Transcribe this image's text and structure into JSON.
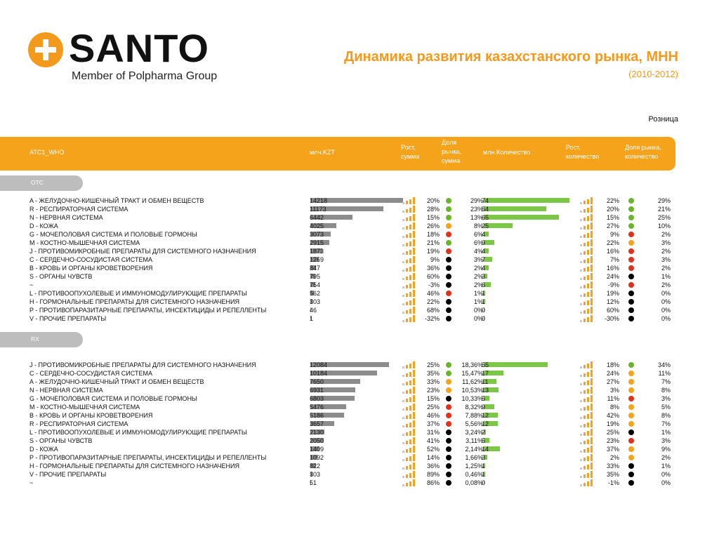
{
  "logo": {
    "word": "SANTO",
    "sub": "Member of Polpharma Group",
    "color": "#f39a1d"
  },
  "title": "Динамика развития казахстанского рынка, МНН",
  "subtitle": "(2010-2012)",
  "channel": "Розница",
  "header": {
    "atc": "ATC1_WHO",
    "kzt": "млн.KZT",
    "growth_sum": [
      "Рост,",
      "сумма"
    ],
    "share_sum": [
      "Доля",
      "рынка,",
      "сумма"
    ],
    "qty": "млн.Количество",
    "growth_qty": [
      "Рост,",
      "количество"
    ],
    "share_qty": [
      "Доля рынка,",
      "количество"
    ]
  },
  "colors": {
    "accent": "#f5a31a",
    "green": "#6ab42d",
    "orange": "#f5a31a",
    "red": "#e0301e",
    "black": "#000000",
    "kzt_bar": "#8c8c8c",
    "qty_bar": "#7cc748"
  },
  "groups": [
    {
      "label": "OTC",
      "rows": [
        {
          "name": "A - ЖЕЛУДОЧНО-КИШЕЧНЫЙ ТРАКТ И ОБМЕН ВЕЩЕСТВ",
          "kzt": "14218",
          "kzt_val": 14218,
          "g_sum": "20%",
          "d1": "green",
          "share_sum": "29%",
          "qty": "74",
          "qty_val": 74,
          "g_qty": "22%",
          "d2": "green",
          "share_qty": "29%"
        },
        {
          "name": "R - РЕСПИРАТОРНАЯ СИСТЕМА",
          "kzt": "11173",
          "kzt_val": 11173,
          "g_sum": "28%",
          "d1": "green",
          "share_sum": "23%",
          "qty": "54",
          "qty_val": 54,
          "g_qty": "20%",
          "d2": "green",
          "share_qty": "21%"
        },
        {
          "name": "N - НЕРВНАЯ СИСТЕМА",
          "kzt": "6442",
          "kzt_val": 6442,
          "g_sum": "15%",
          "d1": "green",
          "share_sum": "13%",
          "qty": "65",
          "qty_val": 65,
          "g_qty": "15%",
          "d2": "green",
          "share_qty": "25%"
        },
        {
          "name": "D - КОЖА",
          "kzt": "4025",
          "kzt_val": 4025,
          "g_sum": "26%",
          "d1": "orange",
          "share_sum": "8%",
          "qty": "25",
          "qty_val": 25,
          "g_qty": "27%",
          "d2": "green",
          "share_qty": "10%"
        },
        {
          "name": "G - МОЧЕПОЛОВАЯ СИСТЕМА И ПОЛОВЫЕ ГОРМОНЫ",
          "kzt": "3073",
          "kzt_val": 3073,
          "g_sum": "18%",
          "d1": "red",
          "share_sum": "6%",
          "qty": "4",
          "qty_val": 4,
          "g_qty": "9%",
          "d2": "red",
          "share_qty": "2%"
        },
        {
          "name": "M - КОСТНО-МЫШЕЧНАЯ СИСТЕМА",
          "kzt": "2915",
          "kzt_val": 2915,
          "g_sum": "21%",
          "d1": "green",
          "share_sum": "6%",
          "qty": "9",
          "qty_val": 9,
          "g_qty": "22%",
          "d2": "orange",
          "share_qty": "3%"
        },
        {
          "name": "J - ПРОТИВОМИКРОБНЫЕ ПРЕПАРАТЫ ДЛЯ СИСТЕМНОГО НАЗНАЧЕНИЯ",
          "kzt": "1873",
          "kzt_val": 1873,
          "g_sum": "19%",
          "d1": "red",
          "share_sum": "4%",
          "qty": "4",
          "qty_val": 4,
          "g_qty": "16%",
          "d2": "red",
          "share_qty": "2%"
        },
        {
          "name": "C - СЕРДЕЧНО-СОСУДИСТАЯ СИСТЕМА",
          "kzt": "1269",
          "kzt_val": 1269,
          "g_sum": "9%",
          "d1": "black",
          "share_sum": "3%",
          "qty": "7",
          "qty_val": 7,
          "g_qty": "7%",
          "d2": "red",
          "share_qty": "3%"
        },
        {
          "name": "B - КРОВЬ И ОРГАНЫ КРОВЕТВОРЕНИЯ",
          "kzt": "847",
          "kzt_val": 847,
          "g_sum": "36%",
          "d1": "black",
          "share_sum": "2%",
          "qty": "4",
          "qty_val": 4,
          "g_qty": "16%",
          "d2": "red",
          "share_qty": "2%"
        },
        {
          "name": "S - ОРГАНЫ ЧУВСТВ",
          "kzt": "795",
          "kzt_val": 795,
          "g_sum": "60%",
          "d1": "black",
          "share_sum": "2%",
          "qty": "3",
          "qty_val": 3,
          "g_qty": "24%",
          "d2": "black",
          "share_qty": "1%"
        },
        {
          "name": "~",
          "kzt": "754",
          "kzt_val": 754,
          "g_sum": "-3%",
          "d1": "black",
          "share_sum": "2%",
          "qty": "6",
          "qty_val": 6,
          "g_qty": "-9%",
          "d2": "red",
          "share_qty": "2%"
        },
        {
          "name": "L - ПРОТИВООПУХОЛЕВЫЕ И ИММУНОМОДУЛИРУЮЩИЕ ПРЕПАРАТЫ",
          "kzt": "562",
          "kzt_val": 562,
          "g_sum": "46%",
          "d1": "red",
          "share_sum": "1%",
          "qty": "1",
          "qty_val": 1,
          "g_qty": "19%",
          "d2": "black",
          "share_qty": "0%"
        },
        {
          "name": "H - ГОРМОНАЛЬНЫЕ ПРЕПАРАТЫ ДЛЯ СИСТЕМНОГО НАЗНАЧЕНИЯ",
          "kzt": "303",
          "kzt_val": 303,
          "g_sum": "22%",
          "d1": "black",
          "share_sum": "1%",
          "qty": "1",
          "qty_val": 1,
          "g_qty": "12%",
          "d2": "black",
          "share_qty": "0%"
        },
        {
          "name": "P - ПРОТИВОПАРАЗИТАРНЫЕ ПРЕПАРАТЫ, ИНСЕКТИЦИДЫ И РЕПЕЛЛЕНТЫ",
          "kzt": "46",
          "kzt_val": 46,
          "g_sum": "68%",
          "d1": "black",
          "share_sum": "0%",
          "qty": "0",
          "qty_val": 0,
          "g_qty": "60%",
          "d2": "black",
          "share_qty": "0%"
        },
        {
          "name": "V - ПРОЧИЕ ПРЕПАРАТЫ",
          "kzt": "1",
          "kzt_val": 1,
          "g_sum": "-32%",
          "d1": "black",
          "share_sum": "0%",
          "qty": "0",
          "qty_val": 0,
          "g_qty": "-30%",
          "d2": "black",
          "share_qty": "0%"
        }
      ]
    },
    {
      "label": "RX",
      "rows": [
        {
          "name": "J - ПРОТИВОМИКРОБНЫЕ ПРЕПАРАТЫ ДЛЯ СИСТЕМНОГО НАЗНАЧЕНИЯ",
          "kzt": "12084",
          "kzt_val": 12084,
          "g_sum": "25%",
          "d1": "green",
          "share_sum": "18,36%",
          "qty": "55",
          "qty_val": 55,
          "g_qty": "18%",
          "d2": "green",
          "share_qty": "34%"
        },
        {
          "name": "C - СЕРДЕЧНО-СОСУДИСТАЯ СИСТЕМА",
          "kzt": "10184",
          "kzt_val": 10184,
          "g_sum": "35%",
          "d1": "green",
          "share_sum": "15,47%",
          "qty": "17",
          "qty_val": 17,
          "g_qty": "24%",
          "d2": "orange",
          "share_qty": "11%"
        },
        {
          "name": "A - ЖЕЛУДОЧНО-КИШЕЧНЫЙ ТРАКТ И ОБМЕН ВЕЩЕСТВ",
          "kzt": "7650",
          "kzt_val": 7650,
          "g_sum": "33%",
          "d1": "orange",
          "share_sum": "11,62%",
          "qty": "11",
          "qty_val": 11,
          "g_qty": "27%",
          "d2": "orange",
          "share_qty": "7%"
        },
        {
          "name": "N - НЕРВНАЯ СИСТЕМА",
          "kzt": "6931",
          "kzt_val": 6931,
          "g_sum": "23%",
          "d1": "orange",
          "share_sum": "10,53%",
          "qty": "13",
          "qty_val": 13,
          "g_qty": "3%",
          "d2": "orange",
          "share_qty": "8%"
        },
        {
          "name": "G - МОЧЕПОЛОВАЯ СИСТЕМА И ПОЛОВЫЕ ГОРМОНЫ",
          "kzt": "6803",
          "kzt_val": 6803,
          "g_sum": "15%",
          "d1": "black",
          "share_sum": "10,33%",
          "qty": "5",
          "qty_val": 5,
          "g_qty": "11%",
          "d2": "red",
          "share_qty": "3%"
        },
        {
          "name": "M - КОСТНО-МЫШЕЧНАЯ СИСТЕМА",
          "kzt": "5476",
          "kzt_val": 5476,
          "g_sum": "25%",
          "d1": "red",
          "share_sum": "8,32%",
          "qty": "9",
          "qty_val": 9,
          "g_qty": "8%",
          "d2": "orange",
          "share_qty": "5%"
        },
        {
          "name": "B - КРОВЬ И ОРГАНЫ КРОВЕТВОРЕНИЯ",
          "kzt": "5186",
          "kzt_val": 5186,
          "g_sum": "46%",
          "d1": "red",
          "share_sum": "7,88%",
          "qty": "12",
          "qty_val": 12,
          "g_qty": "42%",
          "d2": "orange",
          "share_qty": "8%"
        },
        {
          "name": "R - РЕСПИРАТОРНАЯ СИСТЕМА",
          "kzt": "3657",
          "kzt_val": 3657,
          "g_sum": "37%",
          "d1": "red",
          "share_sum": "5,56%",
          "qty": "12",
          "qty_val": 12,
          "g_qty": "19%",
          "d2": "orange",
          "share_qty": "7%"
        },
        {
          "name": "L - ПРОТИВООПУХОЛЕВЫЕ И ИММУНОМОДУЛИРУЮЩИЕ ПРЕПАРАТЫ",
          "kzt": "2130",
          "kzt_val": 2130,
          "g_sum": "31%",
          "d1": "black",
          "share_sum": "3,24%",
          "qty": "2",
          "qty_val": 2,
          "g_qty": "25%",
          "d2": "black",
          "share_qty": "1%"
        },
        {
          "name": "S - ОРГАНЫ ЧУВСТВ",
          "kzt": "2050",
          "kzt_val": 2050,
          "g_sum": "41%",
          "d1": "black",
          "share_sum": "3,11%",
          "qty": "5",
          "qty_val": 5,
          "g_qty": "23%",
          "d2": "red",
          "share_qty": "3%"
        },
        {
          "name": "D - КОЖА",
          "kzt": "1409",
          "kzt_val": 1409,
          "g_sum": "52%",
          "d1": "black",
          "share_sum": "2,14%",
          "qty": "14",
          "qty_val": 14,
          "g_qty": "37%",
          "d2": "orange",
          "share_qty": "9%"
        },
        {
          "name": "P - ПРОТИВОПАРАЗИТАРНЫЕ ПРЕПАРАТЫ, ИНСЕКТИЦИДЫ И РЕПЕЛЛЕНТЫ",
          "kzt": "1092",
          "kzt_val": 1092,
          "g_sum": "14%",
          "d1": "black",
          "share_sum": "1,66%",
          "qty": "3",
          "qty_val": 3,
          "g_qty": "2%",
          "d2": "orange",
          "share_qty": "2%"
        },
        {
          "name": "H - ГОРМОНАЛЬНЫЕ ПРЕПАРАТЫ ДЛЯ СИСТЕМНОГО НАЗНАЧЕНИЯ",
          "kzt": "822",
          "kzt_val": 822,
          "g_sum": "36%",
          "d1": "black",
          "share_sum": "1,25%",
          "qty": "1",
          "qty_val": 1,
          "g_qty": "33%",
          "d2": "black",
          "share_qty": "1%"
        },
        {
          "name": "V - ПРОЧИЕ ПРЕПАРАТЫ",
          "kzt": "303",
          "kzt_val": 303,
          "g_sum": "89%",
          "d1": "black",
          "share_sum": "0,46%",
          "qty": "1",
          "qty_val": 1,
          "g_qty": "35%",
          "d2": "black",
          "share_qty": "0%"
        },
        {
          "name": "~",
          "kzt": "51",
          "kzt_val": 51,
          "g_sum": "86%",
          "d1": "black",
          "share_sum": "0,08%",
          "qty": "0",
          "qty_val": 0,
          "g_qty": "-1%",
          "d2": "black",
          "share_qty": "0%"
        }
      ]
    }
  ]
}
